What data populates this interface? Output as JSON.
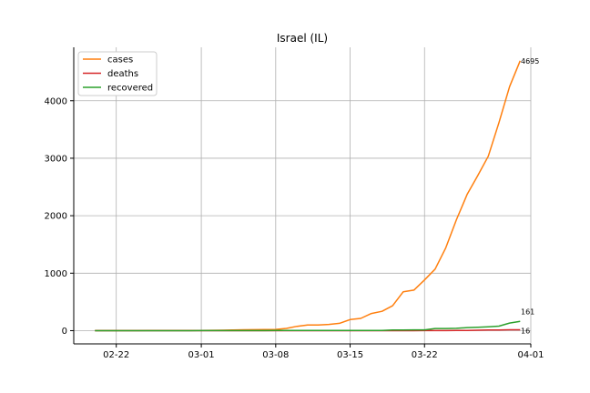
{
  "chart_data": {
    "type": "line",
    "title": "Israel (IL)",
    "xlabel": "",
    "ylabel": "",
    "x_dates": [
      "02-20",
      "02-21",
      "02-22",
      "02-23",
      "02-24",
      "02-25",
      "02-26",
      "02-27",
      "02-28",
      "02-29",
      "03-01",
      "03-02",
      "03-03",
      "03-04",
      "03-05",
      "03-06",
      "03-07",
      "03-08",
      "03-09",
      "03-10",
      "03-11",
      "03-12",
      "03-13",
      "03-14",
      "03-15",
      "03-16",
      "03-17",
      "03-18",
      "03-19",
      "03-20",
      "03-21",
      "03-22",
      "03-23",
      "03-24",
      "03-25",
      "03-26",
      "03-27",
      "03-28",
      "03-29",
      "03-30",
      "03-31"
    ],
    "series": [
      {
        "name": "cases",
        "color": "#ff7f0e",
        "values": [
          1,
          1,
          1,
          1,
          1,
          2,
          2,
          2,
          2,
          2,
          5,
          6,
          7,
          12,
          15,
          17,
          18,
          21,
          39,
          75,
          97,
          100,
          109,
          127,
          193,
          213,
          298,
          337,
          433,
          677,
          705,
          883,
          1071,
          1442,
          1930,
          2369,
          2693,
          3035,
          3619,
          4247,
          4695
        ],
        "end_label": "4695"
      },
      {
        "name": "deaths",
        "color": "#d62728",
        "values": [
          0,
          0,
          0,
          0,
          0,
          0,
          0,
          0,
          0,
          0,
          0,
          0,
          0,
          0,
          0,
          0,
          0,
          0,
          0,
          0,
          0,
          0,
          0,
          0,
          0,
          0,
          0,
          0,
          0,
          0,
          0,
          1,
          1,
          1,
          3,
          5,
          8,
          10,
          12,
          15,
          16
        ],
        "end_label": "16"
      },
      {
        "name": "recovered",
        "color": "#2ca02c",
        "values": [
          0,
          0,
          0,
          0,
          0,
          0,
          0,
          0,
          0,
          0,
          1,
          1,
          1,
          1,
          1,
          1,
          1,
          2,
          2,
          2,
          2,
          4,
          4,
          4,
          4,
          4,
          4,
          4,
          11,
          11,
          14,
          14,
          37,
          37,
          41,
          54,
          60,
          68,
          79,
          132,
          161
        ],
        "end_label": "161"
      }
    ],
    "xtick_labels": [
      "02-22",
      "03-01",
      "03-08",
      "03-15",
      "03-22",
      "04-01"
    ],
    "xtick_dates": [
      "02-22",
      "03-01",
      "03-08",
      "03-15",
      "03-22",
      "04-01"
    ],
    "yticks": [
      0,
      1000,
      2000,
      3000,
      4000
    ],
    "ylim": [
      -230,
      4930
    ],
    "xlim_dates": [
      "02-18",
      "04-01"
    ],
    "grid": true,
    "legend_position": "top-left"
  }
}
